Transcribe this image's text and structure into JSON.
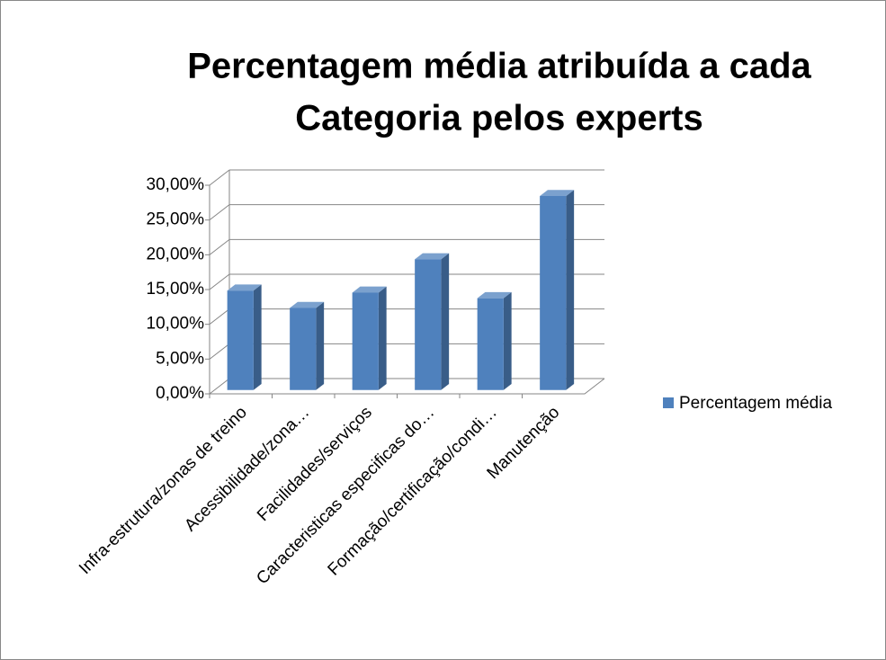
{
  "chart_data": {
    "type": "bar",
    "title": [
      "Percentagem média atribuída a cada",
      "Categoria pelos experts"
    ],
    "categories": [
      "Infra-estrutura/zonas de treino",
      "Acessibilidade/zona…",
      "Facilidades/serviços",
      "Caracteristicas especificas do…",
      "Formação/certificação/condi…",
      "Manutenção"
    ],
    "series": [
      {
        "name": "Percentagem média",
        "color": "#4f81bd",
        "values": [
          14.3,
          11.8,
          14.0,
          18.8,
          13.2,
          27.9
        ]
      }
    ],
    "ylim": [
      0,
      30
    ],
    "yticks": [
      {
        "value": 0,
        "label": "0,00%"
      },
      {
        "value": 5,
        "label": "5,00%"
      },
      {
        "value": 10,
        "label": "10,00%"
      },
      {
        "value": 15,
        "label": "15,00%"
      },
      {
        "value": 20,
        "label": "20,00%"
      },
      {
        "value": 25,
        "label": "25,00%"
      },
      {
        "value": 30,
        "label": "30,00%"
      }
    ],
    "grid": true,
    "legend": "right"
  }
}
